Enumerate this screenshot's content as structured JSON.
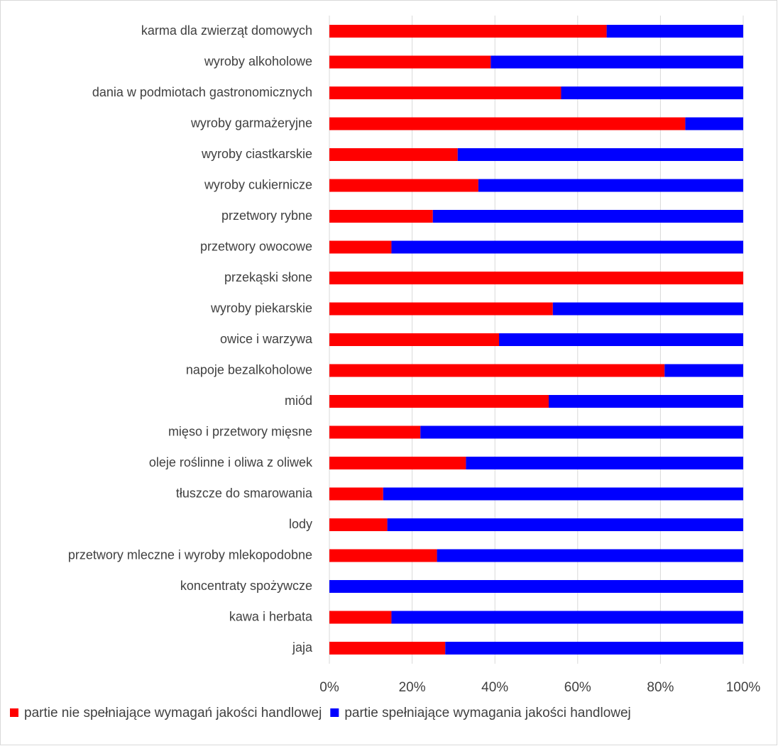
{
  "chart_data": {
    "type": "stacked-barh",
    "categories": [
      "karma dla zwierząt domowych",
      "wyroby alkoholowe",
      "dania w podmiotach gastronomicznych",
      "wyroby garmażeryjne",
      "wyroby ciastkarskie",
      "wyroby cukiernicze",
      "przetwory rybne",
      "przetwory owocowe",
      "przekąski słone",
      "wyroby piekarskie",
      "owice i warzywa",
      "napoje bezalkoholowe",
      "miód",
      "mięso i przetwory mięsne",
      "oleje roślinne i oliwa z oliwek",
      "tłuszcze do smarowania",
      "lody",
      "przetwory mleczne i wyroby mlekopodobne",
      "koncentraty spożywcze",
      "kawa i herbata",
      "jaja"
    ],
    "series": [
      {
        "name": "partie nie spełniające wymagań jakości handlowej",
        "color": "#ff0000",
        "values": [
          67,
          39,
          56,
          86,
          31,
          36,
          25,
          15,
          100,
          54,
          41,
          81,
          53,
          22,
          33,
          13,
          14,
          26,
          0,
          15,
          28
        ]
      },
      {
        "name": "partie spełniające wymagania jakości handlowej",
        "color": "#0000ff",
        "values": [
          33,
          61,
          44,
          14,
          69,
          64,
          75,
          85,
          0,
          46,
          59,
          19,
          47,
          78,
          67,
          87,
          86,
          74,
          100,
          85,
          72
        ]
      }
    ],
    "xlim": [
      0,
      100
    ],
    "xticks": [
      {
        "value": 0,
        "label": "0%"
      },
      {
        "value": 20,
        "label": "20%"
      },
      {
        "value": 40,
        "label": "40%"
      },
      {
        "value": 60,
        "label": "60%"
      },
      {
        "value": 80,
        "label": "80%"
      },
      {
        "value": 100,
        "label": "100%"
      }
    ],
    "grid": true
  }
}
